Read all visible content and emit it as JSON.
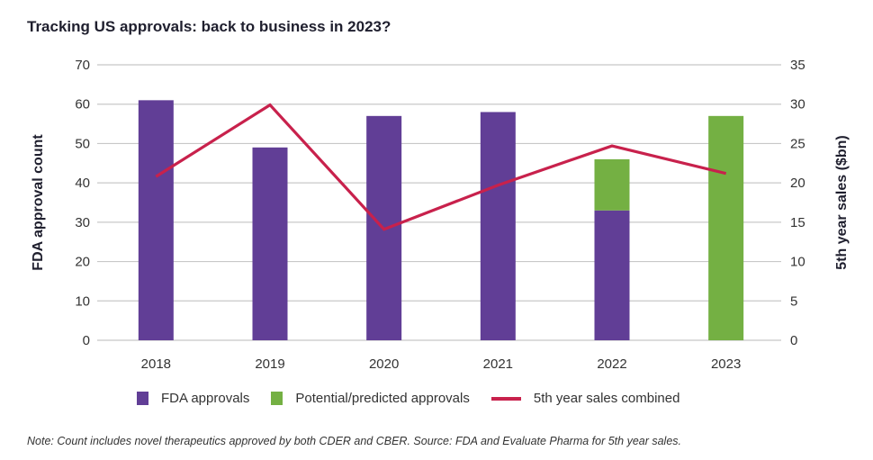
{
  "colors": {
    "fda": "#613e96",
    "predicted": "#74b043",
    "sales": "#c8214c",
    "grid": "#c8c8c8"
  },
  "chart_data": {
    "type": "bar",
    "title": "Tracking US approvals: back to business in 2023?",
    "categories": [
      "2018",
      "2019",
      "2020",
      "2021",
      "2022",
      "2023"
    ],
    "series": [
      {
        "name": "FDA approvals",
        "type": "bar",
        "stacked": true,
        "axis": "left",
        "values": [
          61,
          49,
          57,
          58,
          33,
          0
        ]
      },
      {
        "name": "Potential/predicted approvals",
        "type": "bar",
        "stacked": true,
        "axis": "left",
        "values": [
          0,
          0,
          0,
          0,
          13,
          57
        ]
      },
      {
        "name": "5th year sales combined",
        "type": "line",
        "axis": "right",
        "values": [
          20.8,
          29.9,
          14.1,
          19.7,
          24.7,
          21.2
        ]
      }
    ],
    "ylabel": "FDA approval count",
    "ylim": [
      0,
      70
    ],
    "yticks": [
      "0",
      "10",
      "20",
      "30",
      "40",
      "50",
      "60",
      "70"
    ],
    "y2label": "5th year sales ($bn)",
    "y2lim": [
      0,
      35
    ],
    "y2ticks": [
      "0",
      "5",
      "10",
      "15",
      "20",
      "25",
      "30",
      "35"
    ],
    "grid": true,
    "legend_position": "bottom"
  },
  "legend": [
    "FDA approvals",
    "Potential/predicted approvals",
    "5th year sales combined"
  ],
  "note": "Note: Count includes novel therapeutics approved by both CDER and CBER. Source: FDA and Evaluate Pharma for 5th year sales."
}
